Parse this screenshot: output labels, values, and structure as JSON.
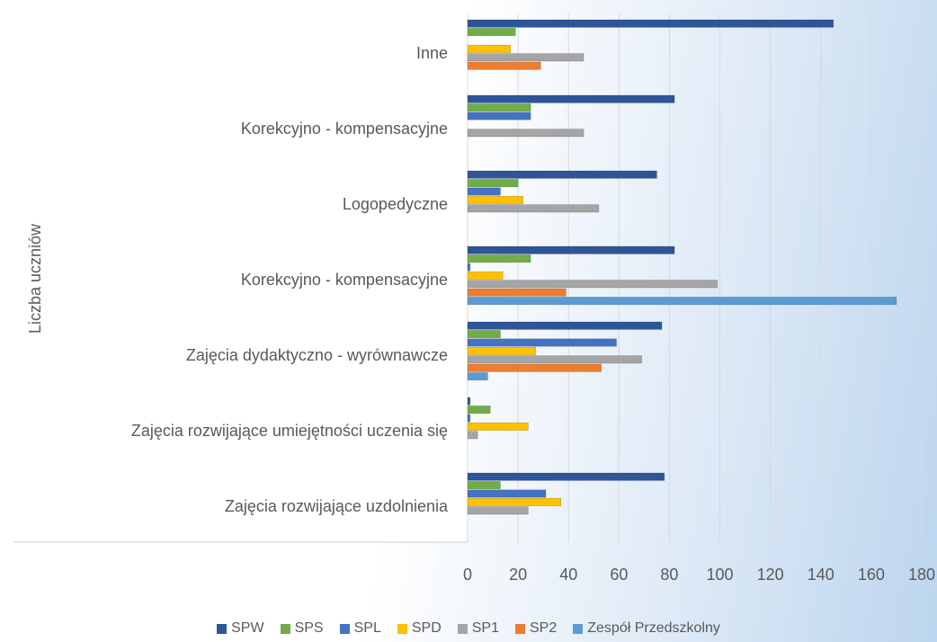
{
  "chart_data": {
    "type": "bar",
    "orientation": "horizontal",
    "y_label": "Liczba uczniów",
    "categories": [
      "Inne",
      "Korekcyjno - kompensacyjne",
      "Logopedyczne",
      "Korekcyjno - kompensacyjne",
      "Zajęcia dydaktyczno - wyrównawcze",
      "Zajęcia rozwijające umiejętności uczenia się",
      "Zajęcia rozwijające uzdolnienia"
    ],
    "series": [
      {
        "name": "SPW",
        "color": "#2e5597",
        "values": [
          145,
          82,
          75,
          82,
          77,
          1,
          78
        ]
      },
      {
        "name": "SPS",
        "color": "#70ad47",
        "values": [
          19,
          25,
          20,
          25,
          13,
          9,
          13
        ]
      },
      {
        "name": "SPL",
        "color": "#4472c4",
        "values": [
          0,
          25,
          13,
          1,
          59,
          1,
          31
        ]
      },
      {
        "name": "SPD",
        "color": "#ffc000",
        "values": [
          17,
          0,
          22,
          14,
          27,
          24,
          37
        ]
      },
      {
        "name": "SP1",
        "color": "#a5a5a5",
        "values": [
          46,
          46,
          52,
          99,
          69,
          4,
          24
        ]
      },
      {
        "name": "SP2",
        "color": "#ed7d31",
        "values": [
          29,
          0,
          0,
          39,
          53,
          0,
          0
        ]
      },
      {
        "name": "Zespół Przedszkolny",
        "color": "#5b9bd5",
        "values": [
          0,
          0,
          0,
          170,
          8,
          0,
          0
        ]
      }
    ],
    "xlim": [
      0,
      180
    ],
    "xticks": [
      0,
      20,
      40,
      60,
      80,
      100,
      120,
      140,
      160,
      180
    ],
    "grid": true,
    "legend": "bottom"
  }
}
